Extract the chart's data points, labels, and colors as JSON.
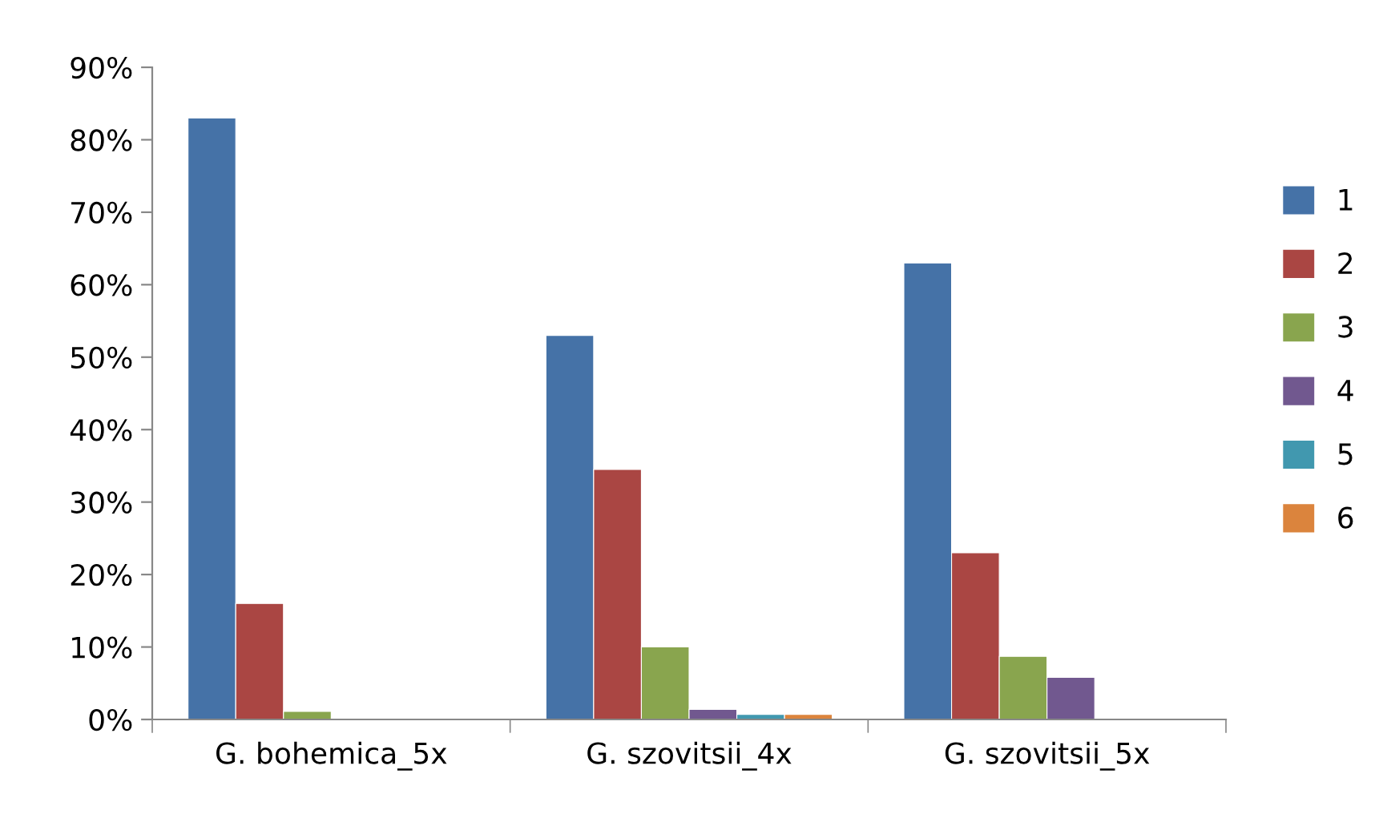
{
  "chart_data": {
    "type": "bar",
    "categories": [
      "G. bohemica_5x",
      "G. szovitsii_4x",
      "G. szovitsii_5x"
    ],
    "series": [
      {
        "name": "1",
        "color": "#4572a7",
        "values": [
          83,
          53,
          63
        ]
      },
      {
        "name": "2",
        "color": "#aa4643",
        "values": [
          16,
          34.5,
          23
        ]
      },
      {
        "name": "3",
        "color": "#89a54e",
        "values": [
          1.1,
          10,
          8.7
        ]
      },
      {
        "name": "4",
        "color": "#71588f",
        "values": [
          null,
          1.4,
          5.8
        ]
      },
      {
        "name": "5",
        "color": "#4198af",
        "values": [
          null,
          0.7,
          null
        ]
      },
      {
        "name": "6",
        "color": "#db843d",
        "values": [
          null,
          0.7,
          null
        ]
      }
    ],
    "ylim": [
      0,
      90
    ],
    "yticks": [
      {
        "value": 0,
        "label": "0%"
      },
      {
        "value": 10,
        "label": "10%"
      },
      {
        "value": 20,
        "label": "20%"
      },
      {
        "value": 30,
        "label": "30%"
      },
      {
        "value": 40,
        "label": "40%"
      },
      {
        "value": 50,
        "label": "50%"
      },
      {
        "value": 60,
        "label": "60%"
      },
      {
        "value": 70,
        "label": "70%"
      },
      {
        "value": 80,
        "label": "80%"
      },
      {
        "value": 90,
        "label": "90%"
      }
    ],
    "grid": false,
    "legend": "right"
  }
}
